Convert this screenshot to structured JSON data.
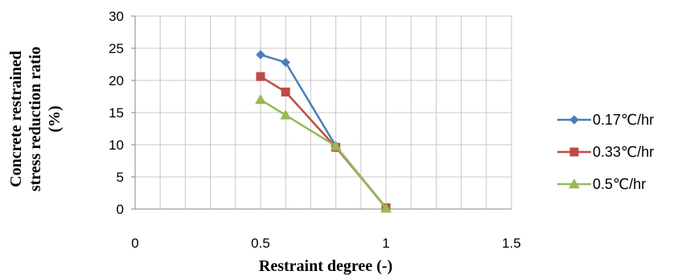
{
  "chart_data": {
    "type": "line",
    "xlabel": "Restraint degree (-)",
    "ylabel_lines": [
      "Concrete restrained",
      "stress reduction ratio",
      "(%)"
    ],
    "xlim": [
      0,
      1.5
    ],
    "ylim": [
      0,
      30
    ],
    "x_ticks": [
      0,
      0.5,
      1,
      1.5
    ],
    "x_tick_labels": [
      "0",
      "0.5",
      "1",
      "1.5"
    ],
    "y_ticks": [
      0,
      5,
      10,
      15,
      20,
      25,
      30
    ],
    "y_tick_labels": [
      "0",
      "5",
      "10",
      "15",
      "20",
      "25",
      "30"
    ],
    "x_minor_step": 0.1,
    "grid": true,
    "legend_position": "right",
    "series": [
      {
        "name": "0.17℃/hr",
        "color": "#4A7EBB",
        "marker": "diamond",
        "x": [
          0.5,
          0.6,
          0.8,
          1.0
        ],
        "y": [
          24.0,
          22.8,
          9.8,
          0.2
        ]
      },
      {
        "name": "0.33℃/hr",
        "color": "#BE4B48",
        "marker": "square",
        "x": [
          0.5,
          0.6,
          0.8,
          1.0
        ],
        "y": [
          20.6,
          18.2,
          9.6,
          0.2
        ]
      },
      {
        "name": "0.5℃/hr",
        "color": "#98B954",
        "marker": "triangle",
        "x": [
          0.5,
          0.6,
          0.8,
          1.0
        ],
        "y": [
          17.0,
          14.6,
          9.8,
          0.1
        ]
      }
    ]
  }
}
